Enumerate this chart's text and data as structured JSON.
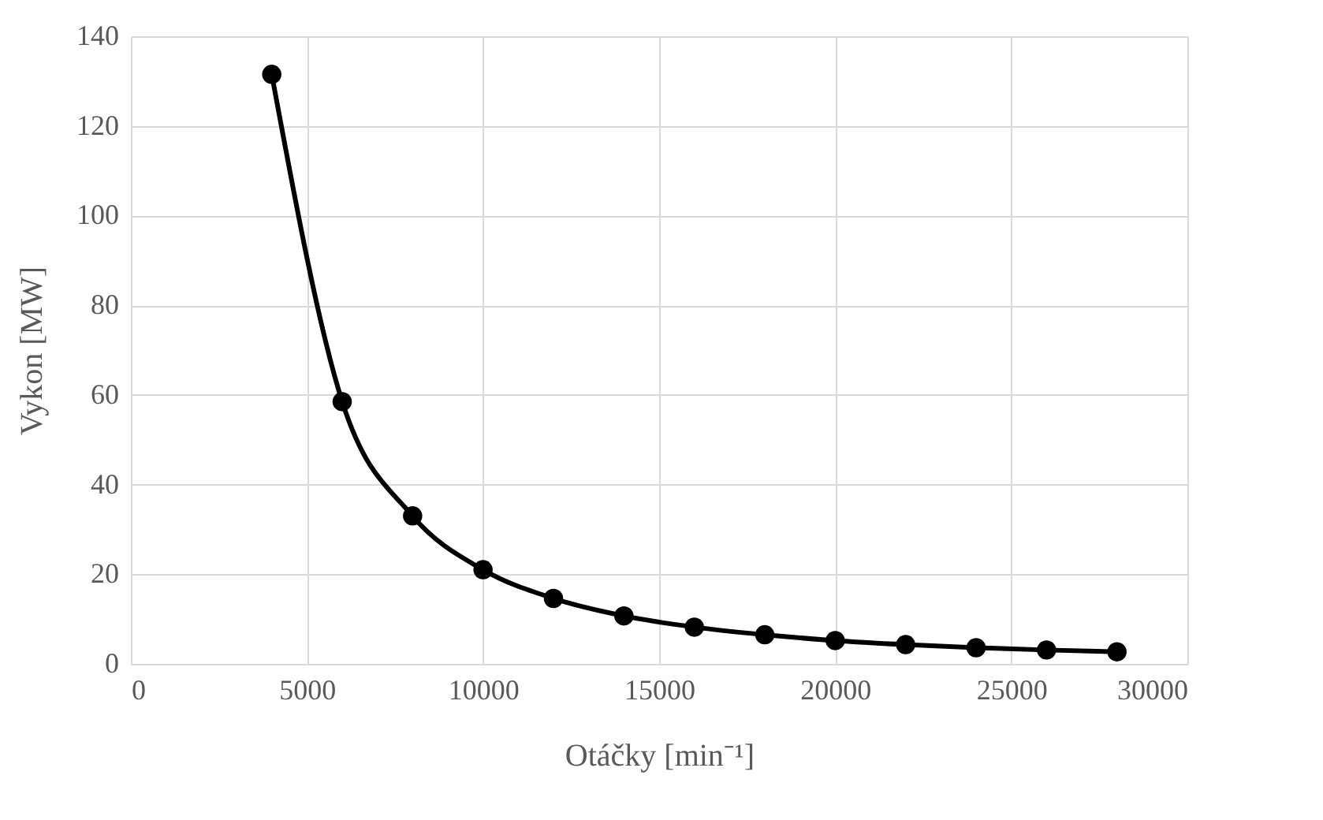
{
  "chart_data": {
    "type": "line",
    "xlabel": "Otáčky [min⁻¹]",
    "ylabel": "Vykon [MW]",
    "x": [
      4000,
      6000,
      8000,
      10000,
      12000,
      14000,
      16000,
      18000,
      20000,
      22000,
      24000,
      26000,
      28000
    ],
    "series": [
      {
        "color": "#000000",
        "values": [
          131.5,
          58.5,
          33,
          21,
          14.6,
          10.7,
          8.2,
          6.5,
          5.2,
          4.3,
          3.6,
          3.1,
          2.7
        ]
      }
    ],
    "xlim": [
      0,
      30000
    ],
    "xticks": [
      0,
      5000,
      10000,
      15000,
      20000,
      25000,
      30000
    ],
    "ylim": [
      0,
      140
    ],
    "yticks": [
      0,
      20,
      40,
      60,
      80,
      100,
      120,
      140
    ],
    "grid": true,
    "marker": "circle",
    "line_style": "solid"
  }
}
